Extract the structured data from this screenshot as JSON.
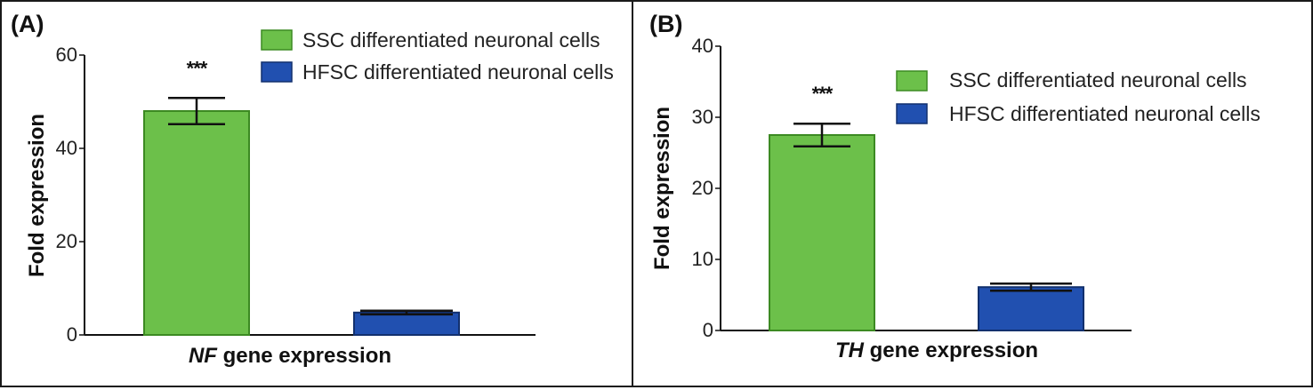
{
  "chart_data": [
    {
      "type": "bar",
      "panel_label": "(A)",
      "title": "",
      "categories": [
        "SSC differentiated neuronal cells",
        "HFSC differentiated neuronal cells"
      ],
      "values": [
        48,
        4.8
      ],
      "errors": [
        2.8,
        0.4
      ],
      "colors": [
        "#6cc04a",
        "#2150b0"
      ],
      "significance": [
        "***",
        ""
      ],
      "xlabel_gene": "NF",
      "xlabel_rest": " gene expression",
      "ylabel": "Fold expression",
      "ylim": [
        0,
        60
      ],
      "yticks": [
        0,
        20,
        40,
        60
      ],
      "legend": [
        "SSC differentiated neuronal cells",
        "HFSC differentiated neuronal cells"
      ],
      "legend_position": "top-right",
      "grid": false
    },
    {
      "type": "bar",
      "panel_label": "(B)",
      "title": "",
      "categories": [
        "SSC differentiated neuronal cells",
        "HFSC differentiated neuronal cells"
      ],
      "values": [
        27.5,
        6.1
      ],
      "errors": [
        1.6,
        0.5
      ],
      "colors": [
        "#6cc04a",
        "#2150b0"
      ],
      "significance": [
        "***",
        ""
      ],
      "xlabel_gene": "TH",
      "xlabel_rest": " gene expression",
      "ylabel": "Fold expression",
      "ylim": [
        0,
        40
      ],
      "yticks": [
        0,
        10,
        20,
        30,
        40
      ],
      "legend": [
        "SSC differentiated neuronal cells",
        "HFSC differentiated neuronal cells"
      ],
      "legend_position": "top-right",
      "grid": false
    }
  ]
}
